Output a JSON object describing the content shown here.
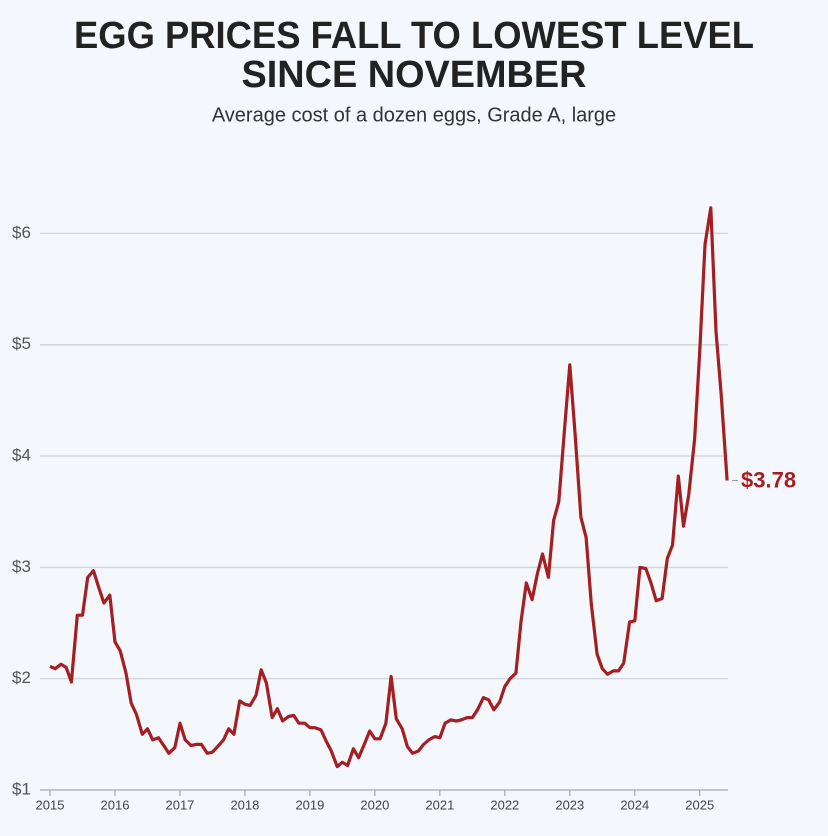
{
  "chart_data": {
    "type": "line",
    "title": [
      "EGG PRICES FALL TO LOWEST LEVEL",
      "SINCE NOVEMBER"
    ],
    "subtitle": "Average cost of a dozen eggs, Grade A, large",
    "x": [
      2015,
      2015.08,
      2015.17,
      2015.25,
      2015.33,
      2015.42,
      2015.5,
      2015.58,
      2015.67,
      2015.75,
      2015.83,
      2015.92,
      2016,
      2016.08,
      2016.17,
      2016.25,
      2016.33,
      2016.42,
      2016.5,
      2016.58,
      2016.67,
      2016.75,
      2016.83,
      2016.92,
      2017,
      2017.08,
      2017.17,
      2017.25,
      2017.33,
      2017.42,
      2017.5,
      2017.58,
      2017.67,
      2017.75,
      2017.83,
      2017.92,
      2018,
      2018.08,
      2018.17,
      2018.25,
      2018.33,
      2018.42,
      2018.5,
      2018.58,
      2018.67,
      2018.75,
      2018.83,
      2018.92,
      2019,
      2019.08,
      2019.17,
      2019.25,
      2019.33,
      2019.42,
      2019.5,
      2019.58,
      2019.67,
      2019.75,
      2019.83,
      2019.92,
      2020,
      2020.08,
      2020.17,
      2020.25,
      2020.33,
      2020.42,
      2020.5,
      2020.58,
      2020.67,
      2020.75,
      2020.83,
      2020.92,
      2021,
      2021.08,
      2021.17,
      2021.25,
      2021.33,
      2021.42,
      2021.5,
      2021.58,
      2021.67,
      2021.75,
      2021.83,
      2021.92,
      2022,
      2022.08,
      2022.17,
      2022.25,
      2022.33,
      2022.42,
      2022.5,
      2022.58,
      2022.67,
      2022.75,
      2022.83,
      2022.92,
      2023,
      2023.08,
      2023.17,
      2023.25,
      2023.33,
      2023.42,
      2023.5,
      2023.58,
      2023.67,
      2023.75,
      2023.83,
      2023.92,
      2024,
      2024.08,
      2024.17,
      2024.25,
      2024.33,
      2024.42,
      2024.5,
      2024.58,
      2024.67,
      2024.75,
      2024.83,
      2024.92,
      2025,
      2025.08,
      2025.17,
      2025.25,
      2025.33,
      2025.42
    ],
    "series": [
      {
        "name": "Egg price",
        "color": "#a31f22",
        "values": [
          2.11,
          2.09,
          2.13,
          2.1,
          1.97,
          2.57,
          2.57,
          2.91,
          2.97,
          2.82,
          2.68,
          2.75,
          2.33,
          2.25,
          2.05,
          1.78,
          1.68,
          1.5,
          1.55,
          1.45,
          1.47,
          1.4,
          1.33,
          1.38,
          1.6,
          1.45,
          1.4,
          1.41,
          1.41,
          1.33,
          1.34,
          1.39,
          1.45,
          1.55,
          1.5,
          1.8,
          1.77,
          1.76,
          1.85,
          2.08,
          1.96,
          1.65,
          1.73,
          1.62,
          1.66,
          1.67,
          1.6,
          1.6,
          1.56,
          1.56,
          1.54,
          1.44,
          1.35,
          1.21,
          1.25,
          1.22,
          1.37,
          1.29,
          1.4,
          1.53,
          1.46,
          1.46,
          1.6,
          2.02,
          1.64,
          1.55,
          1.39,
          1.33,
          1.35,
          1.41,
          1.45,
          1.48,
          1.47,
          1.6,
          1.63,
          1.62,
          1.63,
          1.65,
          1.65,
          1.72,
          1.83,
          1.81,
          1.72,
          1.79,
          1.93,
          2.0,
          2.05,
          2.52,
          2.86,
          2.71,
          2.94,
          3.12,
          2.91,
          3.42,
          3.59,
          4.25,
          4.82,
          4.21,
          3.45,
          3.27,
          2.67,
          2.22,
          2.09,
          2.04,
          2.07,
          2.07,
          2.14,
          2.51,
          2.52,
          3.0,
          2.99,
          2.86,
          2.7,
          2.72,
          3.08,
          3.2,
          3.82,
          3.37,
          3.65,
          4.15,
          4.95,
          5.9,
          6.23,
          5.12,
          4.55,
          3.78
        ]
      }
    ],
    "annotations": [
      {
        "text": "$3.78",
        "x": 2025.42,
        "y": 3.78
      }
    ],
    "xlim": [
      2015,
      2025.45
    ],
    "xticks": [
      2015,
      2016,
      2017,
      2018,
      2019,
      2020,
      2021,
      2022,
      2023,
      2024,
      2025
    ],
    "ylim": [
      1,
      6.3
    ],
    "yticks": [
      {
        "value": 1,
        "label": "$1"
      },
      {
        "value": 2,
        "label": "$2"
      },
      {
        "value": 3,
        "label": "$3"
      },
      {
        "value": 4,
        "label": "$4"
      },
      {
        "value": 5,
        "label": "$5"
      },
      {
        "value": 6,
        "label": "$6"
      }
    ],
    "grid": true
  }
}
